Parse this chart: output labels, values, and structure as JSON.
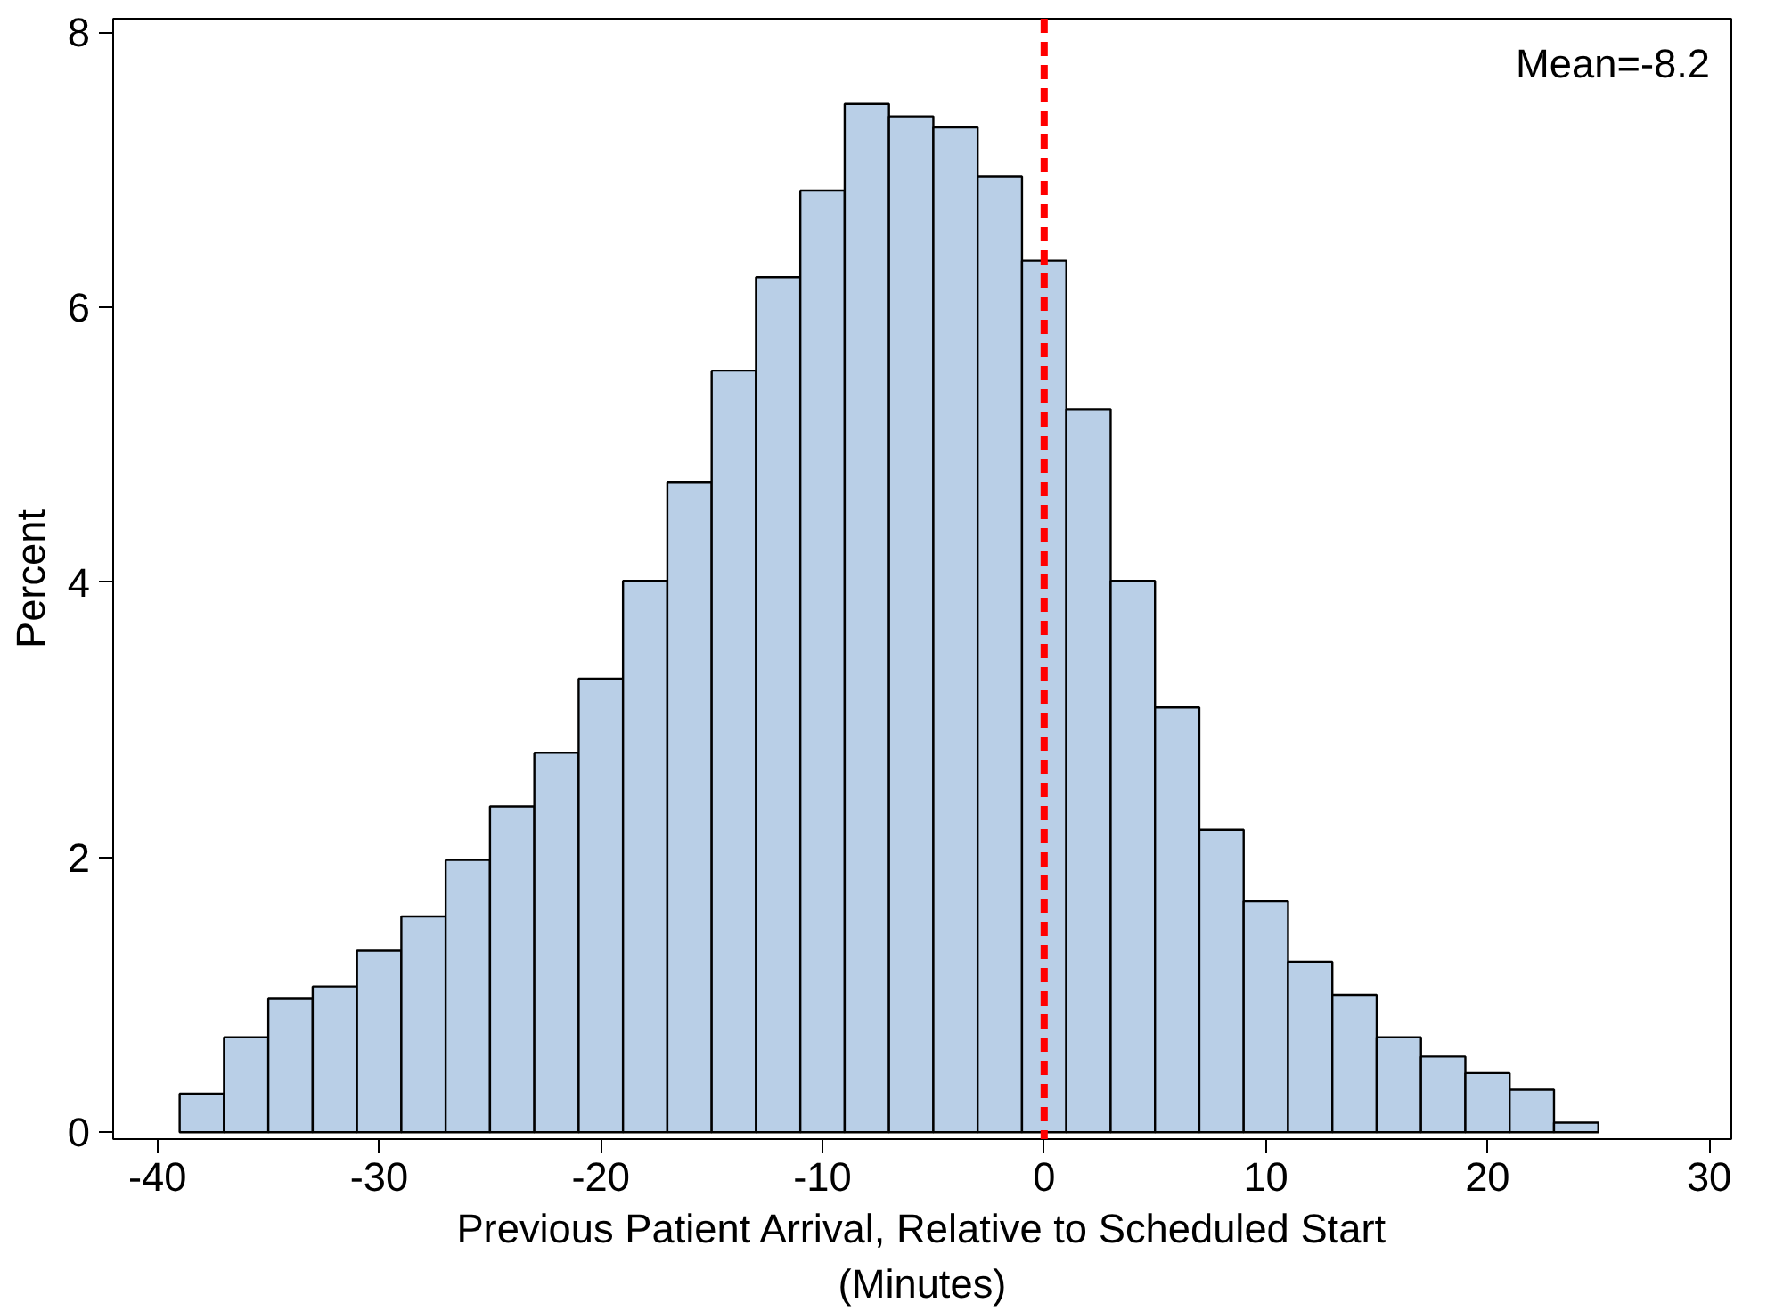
{
  "chart_data": {
    "type": "histogram",
    "xlabel": "Previous Patient Arrival, Relative to Scheduled Start\n(Minutes)",
    "ylabel": "Percent",
    "bins": [
      -39,
      -37,
      -35,
      -33,
      -31,
      -29,
      -27,
      -25,
      -23,
      -21,
      -19,
      -17,
      -15,
      -13,
      -11,
      -9,
      -7,
      -5,
      -3,
      -1,
      1,
      3,
      5,
      7,
      9,
      11,
      13,
      15,
      17,
      19,
      21,
      23,
      25
    ],
    "values": [
      0.28,
      0.69,
      0.97,
      1.06,
      1.32,
      1.57,
      1.98,
      2.37,
      2.76,
      3.3,
      4.01,
      4.73,
      5.54,
      6.22,
      6.85,
      7.48,
      7.39,
      7.31,
      6.95,
      6.34,
      5.26,
      4.01,
      3.09,
      2.2,
      1.68,
      1.24,
      1.0,
      0.69,
      0.55,
      0.43,
      0.31,
      0.07
    ],
    "color": "#b9cfe7",
    "xlim": [
      -42,
      31
    ],
    "ylim": [
      -0.05,
      8.1
    ],
    "xticks": [
      -40,
      -30,
      -20,
      -10,
      0,
      10,
      20,
      30
    ],
    "yticks": [
      0,
      2,
      4,
      6,
      8
    ],
    "ref_lines": [
      {
        "axis": "x",
        "value": 0,
        "color": "#ff0000",
        "line_style": "dashed"
      }
    ],
    "annotations": [
      "Mean=-8.2"
    ],
    "grid": false
  }
}
